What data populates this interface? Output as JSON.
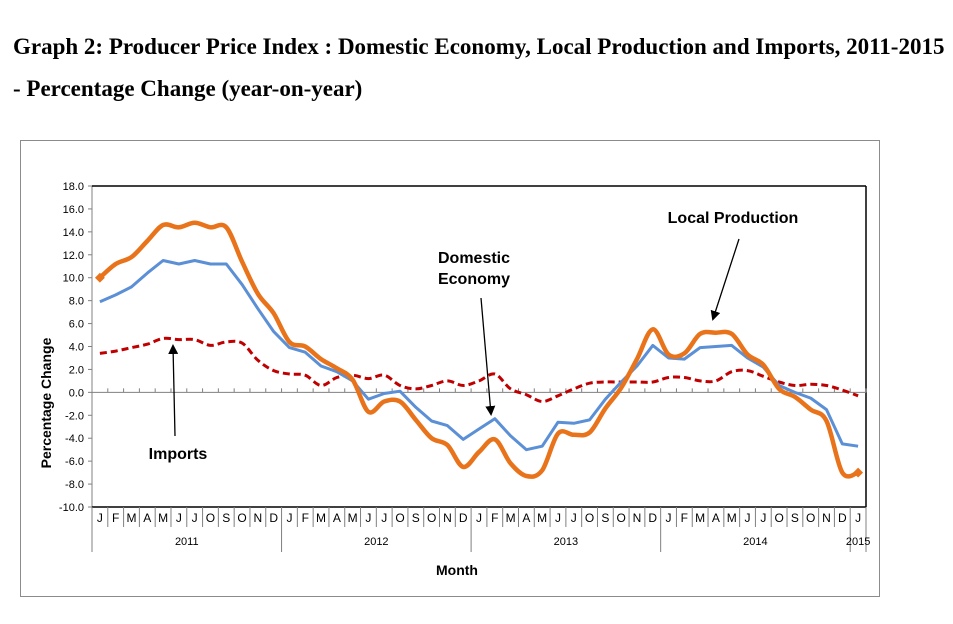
{
  "title": "Graph 2: Producer Price Index : Domestic Economy, Local Production and Imports, 2011-2015 - Percentage Change (year-on-year)",
  "chart_data": {
    "type": "line",
    "title": "Graph 2: Producer Price Index : Domestic Economy, Local Production and Imports, 2011-2015 - Percentage Change (year-on-year)",
    "xlabel": "Month",
    "ylabel": "Percentage Change",
    "ylim": [
      -10,
      18
    ],
    "yticks": [
      "18.0",
      "16.0",
      "14.0",
      "12.0",
      "10.0",
      "8.0",
      "6.0",
      "4.0",
      "2.0",
      "0.0",
      "-2.0",
      "-4.0",
      "-6.0",
      "-8.0",
      "-10.0"
    ],
    "ytick_values": [
      18,
      16,
      14,
      12,
      10,
      8,
      6,
      4,
      2,
      0,
      -2,
      -4,
      -6,
      -8,
      -10
    ],
    "grid": false,
    "legend": "none (inline annotations with arrows)",
    "month_labels": [
      "J",
      "F",
      "M",
      "A",
      "M",
      "J",
      "J",
      "O",
      "S",
      "O",
      "N",
      "D",
      "J",
      "F",
      "M",
      "A",
      "M",
      "J",
      "J",
      "O",
      "S",
      "O",
      "N",
      "D",
      "J",
      "F",
      "M",
      "A",
      "M",
      "J",
      "J",
      "O",
      "S",
      "O",
      "N",
      "D",
      "J",
      "F",
      "M",
      "A",
      "M",
      "J",
      "J",
      "O",
      "S",
      "O",
      "N",
      "D",
      "J"
    ],
    "years": [
      {
        "label": "2011",
        "start": 0,
        "count": 12
      },
      {
        "label": "2012",
        "start": 12,
        "count": 12
      },
      {
        "label": "2013",
        "start": 24,
        "count": 12
      },
      {
        "label": "2014",
        "start": 36,
        "count": 12
      },
      {
        "label": "2015",
        "start": 48,
        "count": 1
      }
    ],
    "series": [
      {
        "name": "Domestic Economy",
        "color": "#5b8fd6",
        "style": "solid",
        "values": [
          7.9,
          8.5,
          9.2,
          10.4,
          11.5,
          11.2,
          11.5,
          11.2,
          11.2,
          9.4,
          7.3,
          5.3,
          3.9,
          3.5,
          2.3,
          1.8,
          1.0,
          -0.6,
          -0.1,
          0.1,
          -1.3,
          -2.5,
          -2.9,
          -4.1,
          -3.2,
          -2.3,
          -3.8,
          -5.0,
          -4.7,
          -2.6,
          -2.7,
          -2.4,
          -0.6,
          0.9,
          2.3,
          4.1,
          3.0,
          2.9,
          3.9,
          4.0,
          4.1,
          3.0,
          2.2,
          0.6,
          0.0,
          -0.5,
          -1.5,
          -4.5,
          -4.7
        ]
      },
      {
        "name": "Local Production",
        "color": "#e8731a",
        "style": "solid-thick",
        "values": [
          10.0,
          11.2,
          11.8,
          13.2,
          14.6,
          14.4,
          14.8,
          14.4,
          14.4,
          11.4,
          8.6,
          6.9,
          4.4,
          4.0,
          2.9,
          2.1,
          1.1,
          -1.7,
          -0.8,
          -0.8,
          -2.4,
          -4.0,
          -4.6,
          -6.5,
          -5.2,
          -4.1,
          -6.2,
          -7.3,
          -6.8,
          -3.6,
          -3.7,
          -3.5,
          -1.4,
          0.4,
          2.9,
          5.5,
          3.3,
          3.4,
          5.1,
          5.2,
          5.1,
          3.3,
          2.4,
          0.3,
          -0.4,
          -1.5,
          -2.5,
          -7.0,
          -7.0
        ]
      },
      {
        "name": "Imports",
        "color": "#c00000",
        "style": "dashed",
        "values": [
          3.4,
          3.6,
          3.9,
          4.2,
          4.7,
          4.6,
          4.6,
          4.1,
          4.4,
          4.3,
          2.8,
          1.9,
          1.6,
          1.5,
          0.6,
          1.3,
          1.5,
          1.2,
          1.5,
          0.6,
          0.3,
          0.6,
          1.0,
          0.6,
          1.0,
          1.6,
          0.3,
          -0.2,
          -0.8,
          -0.3,
          0.3,
          0.8,
          0.9,
          0.9,
          0.9,
          0.9,
          1.3,
          1.3,
          1.0,
          1.0,
          1.8,
          1.9,
          1.4,
          0.9,
          0.6,
          0.7,
          0.6,
          0.2,
          -0.3
        ]
      }
    ],
    "annotations": [
      {
        "lines": [
          "Local Production"
        ],
        "points_to_series": "Local Production",
        "target_index": 39
      },
      {
        "lines": [
          "Domestic",
          "Economy"
        ],
        "points_to_series": "Domestic Economy",
        "target_index": 25
      },
      {
        "lines": [
          "Imports"
        ],
        "points_to_series": "Imports",
        "target_index": 5
      }
    ]
  }
}
